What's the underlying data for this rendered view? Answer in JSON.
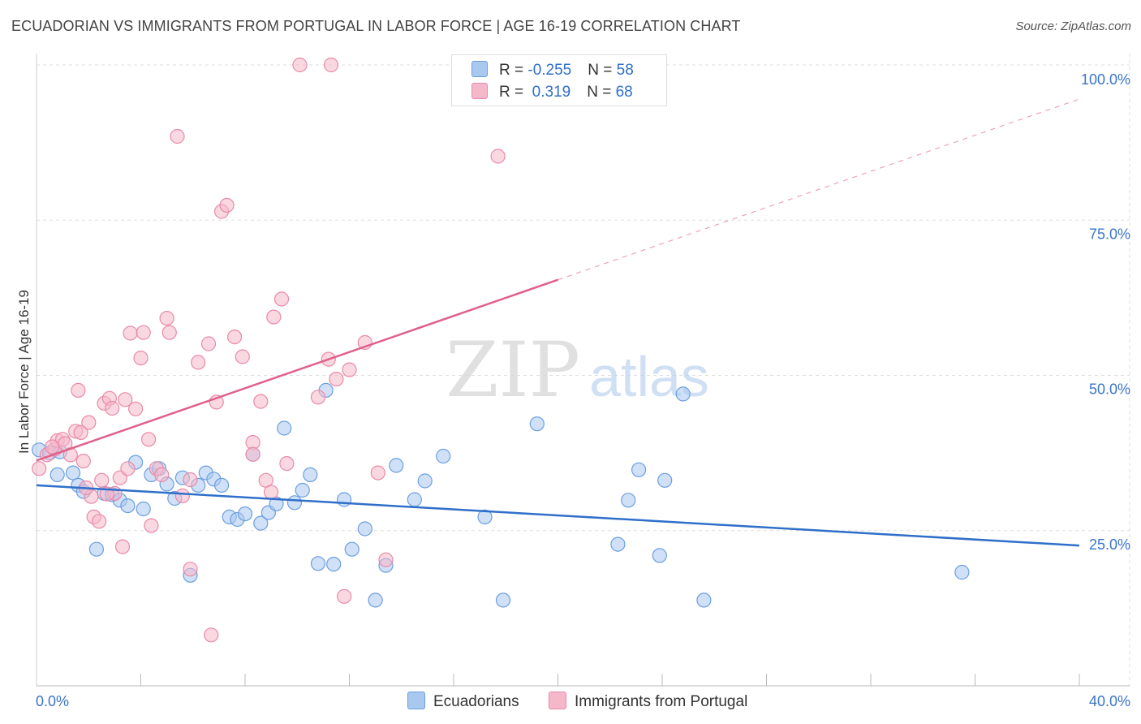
{
  "title": "ECUADORIAN VS IMMIGRANTS FROM PORTUGAL IN LABOR FORCE | AGE 16-19 CORRELATION CHART",
  "source": "Source: ZipAtlas.com",
  "watermark": {
    "zip": "ZIP",
    "atlas": "atlas"
  },
  "colors": {
    "blue_fill": "#a9c8f0",
    "blue_stroke": "#6a9ee0",
    "blue_line": "#2f6fc9",
    "pink_fill": "#f5b8cb",
    "pink_stroke": "#e88aa8",
    "pink_line": "#e0608a",
    "axis_text": "#3a74c9",
    "grid": "#dddddd"
  },
  "legend": {
    "blue": {
      "r_label": "R = ",
      "r_value": "-0.255",
      "n_label": "N = ",
      "n_value": "58"
    },
    "pink": {
      "r_label": "R = ",
      "r_value": " 0.319",
      "n_label": "N = ",
      "n_value": "68"
    }
  },
  "bottom_legend": {
    "blue": "Ecuadorians",
    "pink": "Immigrants from Portugal"
  },
  "chart_data": {
    "type": "scatter",
    "title": "ECUADORIAN VS IMMIGRANTS FROM PORTUGAL IN LABOR FORCE | AGE 16-19 CORRELATION CHART",
    "xlabel": "",
    "ylabel": "In Labor Force | Age 16-19",
    "xlim": [
      0,
      40
    ],
    "ylim": [
      0,
      102
    ],
    "x_tick_labels": [
      "0.0%",
      "40.0%"
    ],
    "y_ticks": [
      25,
      50,
      75,
      100
    ],
    "y_tick_labels": [
      "25.0%",
      "50.0%",
      "75.0%",
      "100.0%"
    ],
    "series": [
      {
        "name": "Ecuadorians",
        "color": "#6a9ee0",
        "trend": {
          "x0": 0,
          "y0": 32.3,
          "x1": 40,
          "y1": 22.6,
          "dashed_from": null
        },
        "points": [
          [
            0.1,
            38
          ],
          [
            0.5,
            37.5
          ],
          [
            0.8,
            34
          ],
          [
            1.4,
            34.3
          ],
          [
            1.6,
            32.3
          ],
          [
            1.8,
            31.3
          ],
          [
            2.3,
            22
          ],
          [
            2.6,
            31
          ],
          [
            2.9,
            30.8
          ],
          [
            3.2,
            29.9
          ],
          [
            3.5,
            29
          ],
          [
            3.8,
            36
          ],
          [
            4.1,
            28.5
          ],
          [
            4.4,
            34
          ],
          [
            4.7,
            35
          ],
          [
            5.0,
            32.5
          ],
          [
            5.3,
            30.2
          ],
          [
            5.6,
            33.5
          ],
          [
            5.9,
            17.8
          ],
          [
            6.2,
            32.3
          ],
          [
            6.5,
            34.3
          ],
          [
            6.8,
            33.3
          ],
          [
            7.1,
            32.3
          ],
          [
            7.4,
            27.2
          ],
          [
            7.7,
            26.8
          ],
          [
            8.0,
            27.7
          ],
          [
            8.3,
            37.3
          ],
          [
            8.6,
            26.2
          ],
          [
            8.9,
            27.9
          ],
          [
            9.2,
            29.3
          ],
          [
            9.5,
            41.5
          ],
          [
            9.9,
            29.5
          ],
          [
            10.2,
            31.5
          ],
          [
            10.5,
            34
          ],
          [
            10.8,
            19.7
          ],
          [
            11.1,
            47.6
          ],
          [
            11.4,
            19.6
          ],
          [
            11.8,
            30
          ],
          [
            12.1,
            22
          ],
          [
            12.6,
            25.3
          ],
          [
            13.0,
            13.8
          ],
          [
            13.4,
            19.4
          ],
          [
            13.8,
            35.5
          ],
          [
            14.5,
            30
          ],
          [
            14.9,
            33
          ],
          [
            15.6,
            37
          ],
          [
            17.2,
            27.2
          ],
          [
            17.9,
            13.8
          ],
          [
            19.2,
            42.2
          ],
          [
            22.3,
            22.8
          ],
          [
            22.7,
            29.9
          ],
          [
            23.1,
            34.8
          ],
          [
            23.9,
            21
          ],
          [
            24.1,
            33.1
          ],
          [
            24.8,
            47
          ],
          [
            25.6,
            13.8
          ],
          [
            35.5,
            18.3
          ],
          [
            0.9,
            37.7
          ]
        ]
      },
      {
        "name": "Immigrants from Portugal",
        "color": "#e88aa8",
        "trend": {
          "x0": 0,
          "y0": 36.3,
          "x1": 40,
          "y1": 94.5,
          "dashed_from": 20
        },
        "points": [
          [
            0.1,
            35
          ],
          [
            0.4,
            37.2
          ],
          [
            0.7,
            38.1
          ],
          [
            0.8,
            39.5
          ],
          [
            1.0,
            39.7
          ],
          [
            1.1,
            39
          ],
          [
            1.3,
            37.2
          ],
          [
            1.5,
            41
          ],
          [
            1.6,
            47.6
          ],
          [
            1.7,
            40.8
          ],
          [
            1.8,
            36.2
          ],
          [
            2.0,
            42.4
          ],
          [
            2.1,
            30.5
          ],
          [
            2.2,
            27.2
          ],
          [
            2.4,
            26.5
          ],
          [
            2.5,
            33.1
          ],
          [
            2.6,
            45.5
          ],
          [
            2.8,
            46.3
          ],
          [
            2.9,
            44.7
          ],
          [
            3.0,
            31
          ],
          [
            3.2,
            33.5
          ],
          [
            3.3,
            22.4
          ],
          [
            3.4,
            46.1
          ],
          [
            3.5,
            35
          ],
          [
            3.6,
            56.8
          ],
          [
            3.8,
            44.6
          ],
          [
            4.0,
            52.8
          ],
          [
            4.1,
            56.9
          ],
          [
            4.3,
            39.7
          ],
          [
            4.4,
            25.8
          ],
          [
            4.6,
            35
          ],
          [
            4.8,
            34
          ],
          [
            5.0,
            59.2
          ],
          [
            5.1,
            56.9
          ],
          [
            5.4,
            88.5
          ],
          [
            5.6,
            30.6
          ],
          [
            5.9,
            33.2
          ],
          [
            5.9,
            18.8
          ],
          [
            6.2,
            52.1
          ],
          [
            6.6,
            55.1
          ],
          [
            6.7,
            8.2
          ],
          [
            6.9,
            45.7
          ],
          [
            7.1,
            76.4
          ],
          [
            7.3,
            77.4
          ],
          [
            7.6,
            56.2
          ],
          [
            7.9,
            53
          ],
          [
            8.3,
            39.2
          ],
          [
            8.3,
            37.3
          ],
          [
            8.6,
            45.8
          ],
          [
            8.8,
            33.1
          ],
          [
            9.0,
            31.2
          ],
          [
            9.1,
            59.4
          ],
          [
            9.4,
            62.3
          ],
          [
            9.6,
            35.8
          ],
          [
            10.1,
            100
          ],
          [
            10.8,
            46.5
          ],
          [
            11.2,
            52.6
          ],
          [
            11.3,
            100
          ],
          [
            11.5,
            49.4
          ],
          [
            11.8,
            14.4
          ],
          [
            12.0,
            50.9
          ],
          [
            12.6,
            55.3
          ],
          [
            13.1,
            34.3
          ],
          [
            13.4,
            20.3
          ],
          [
            17.7,
            85.3
          ],
          [
            2.7,
            30.9
          ],
          [
            1.9,
            31.9
          ],
          [
            0.6,
            38.5
          ]
        ]
      }
    ]
  }
}
